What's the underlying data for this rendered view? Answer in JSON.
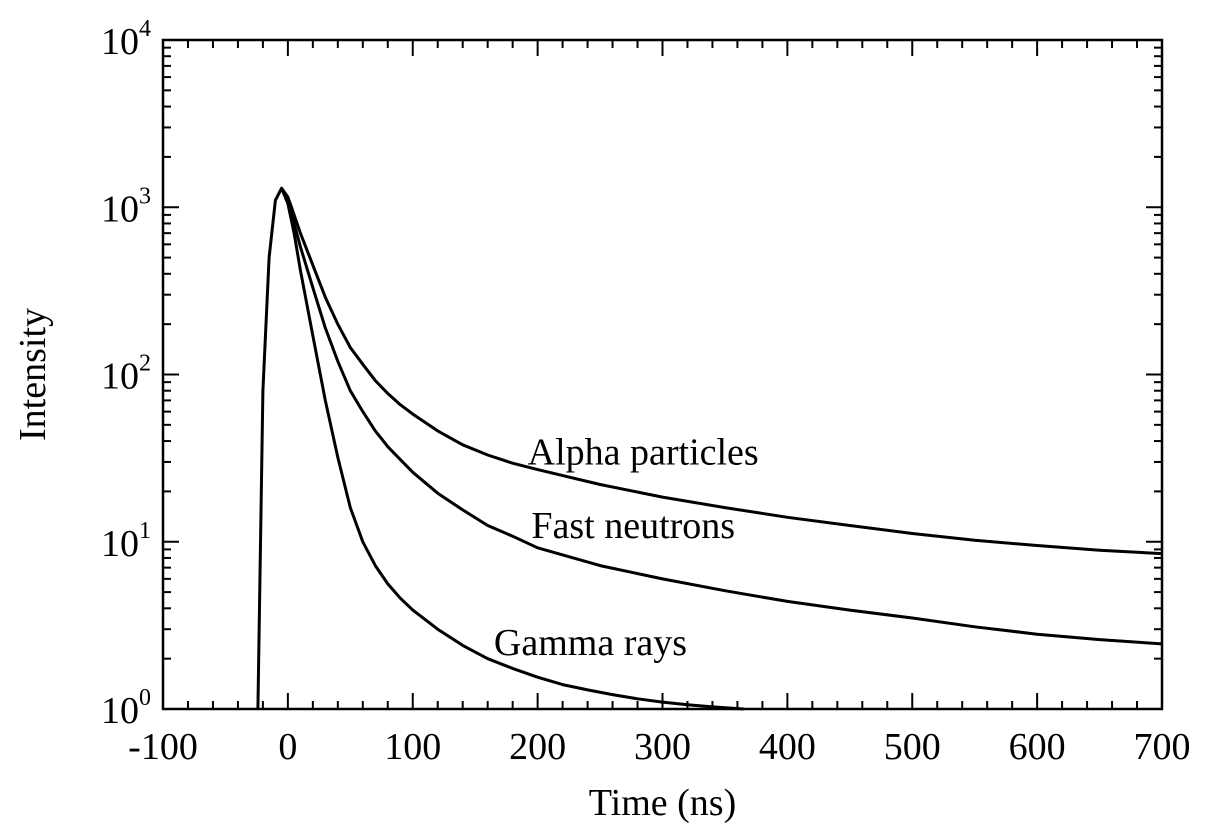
{
  "chart_data": {
    "type": "line",
    "title": "",
    "xlabel": "Time (ns)",
    "ylabel": "Intensity",
    "xlim": [
      -100,
      700
    ],
    "ylim_exponent": [
      0,
      4
    ],
    "y_scale": "log",
    "grid": false,
    "x_ticks": [
      {
        "value": -100,
        "label": "-100"
      },
      {
        "value": 0,
        "label": "0"
      },
      {
        "value": 100,
        "label": "100"
      },
      {
        "value": 200,
        "label": "200"
      },
      {
        "value": 300,
        "label": "300"
      },
      {
        "value": 400,
        "label": "400"
      },
      {
        "value": 500,
        "label": "500"
      },
      {
        "value": 600,
        "label": "600"
      },
      {
        "value": 700,
        "label": "700"
      }
    ],
    "y_ticks": [
      {
        "value": 1,
        "base": "10",
        "exp": "0"
      },
      {
        "value": 10,
        "base": "10",
        "exp": "1"
      },
      {
        "value": 100,
        "base": "10",
        "exp": "2"
      },
      {
        "value": 1000,
        "base": "10",
        "exp": "3"
      },
      {
        "value": 10000,
        "base": "10",
        "exp": "4"
      }
    ],
    "series": [
      {
        "name": "Alpha particles",
        "label_at": [
          192,
          29
        ],
        "x": [
          -24,
          -20,
          -15,
          -10,
          -5,
          0,
          5,
          10,
          20,
          30,
          40,
          50,
          60,
          70,
          80,
          90,
          100,
          120,
          140,
          160,
          180,
          200,
          250,
          300,
          350,
          400,
          450,
          500,
          550,
          600,
          650,
          700
        ],
        "y": [
          1,
          80,
          500,
          1100,
          1300,
          1150,
          900,
          700,
          450,
          290,
          200,
          145,
          115,
          92,
          77,
          66,
          58,
          46,
          38,
          33,
          29.5,
          27,
          22,
          18.5,
          16,
          14,
          12.5,
          11.2,
          10.2,
          9.5,
          8.9,
          8.5
        ]
      },
      {
        "name": "Fast neutrons",
        "label_at": [
          195,
          10.5
        ],
        "x": [
          -5,
          0,
          5,
          10,
          20,
          30,
          40,
          50,
          60,
          70,
          80,
          90,
          100,
          120,
          140,
          160,
          180,
          200,
          250,
          300,
          350,
          400,
          450,
          500,
          550,
          600,
          650,
          700
        ],
        "y": [
          1300,
          1100,
          800,
          580,
          330,
          190,
          120,
          80,
          60,
          46,
          37,
          31,
          26,
          19.5,
          15.5,
          12.5,
          10.8,
          9.2,
          7.2,
          6,
          5.1,
          4.4,
          3.9,
          3.5,
          3.1,
          2.8,
          2.6,
          2.45
        ]
      },
      {
        "name": "Gamma rays",
        "label_at": [
          165,
          2.1
        ],
        "x": [
          -5,
          0,
          5,
          10,
          20,
          30,
          40,
          50,
          60,
          70,
          80,
          90,
          100,
          120,
          140,
          160,
          180,
          200,
          220,
          240,
          260,
          280,
          300,
          320,
          340,
          365
        ],
        "y": [
          1300,
          1050,
          700,
          420,
          170,
          70,
          32,
          16,
          10,
          7.2,
          5.6,
          4.6,
          3.9,
          3.0,
          2.4,
          2.0,
          1.75,
          1.55,
          1.4,
          1.3,
          1.22,
          1.15,
          1.1,
          1.06,
          1.03,
          1.0
        ]
      }
    ]
  }
}
